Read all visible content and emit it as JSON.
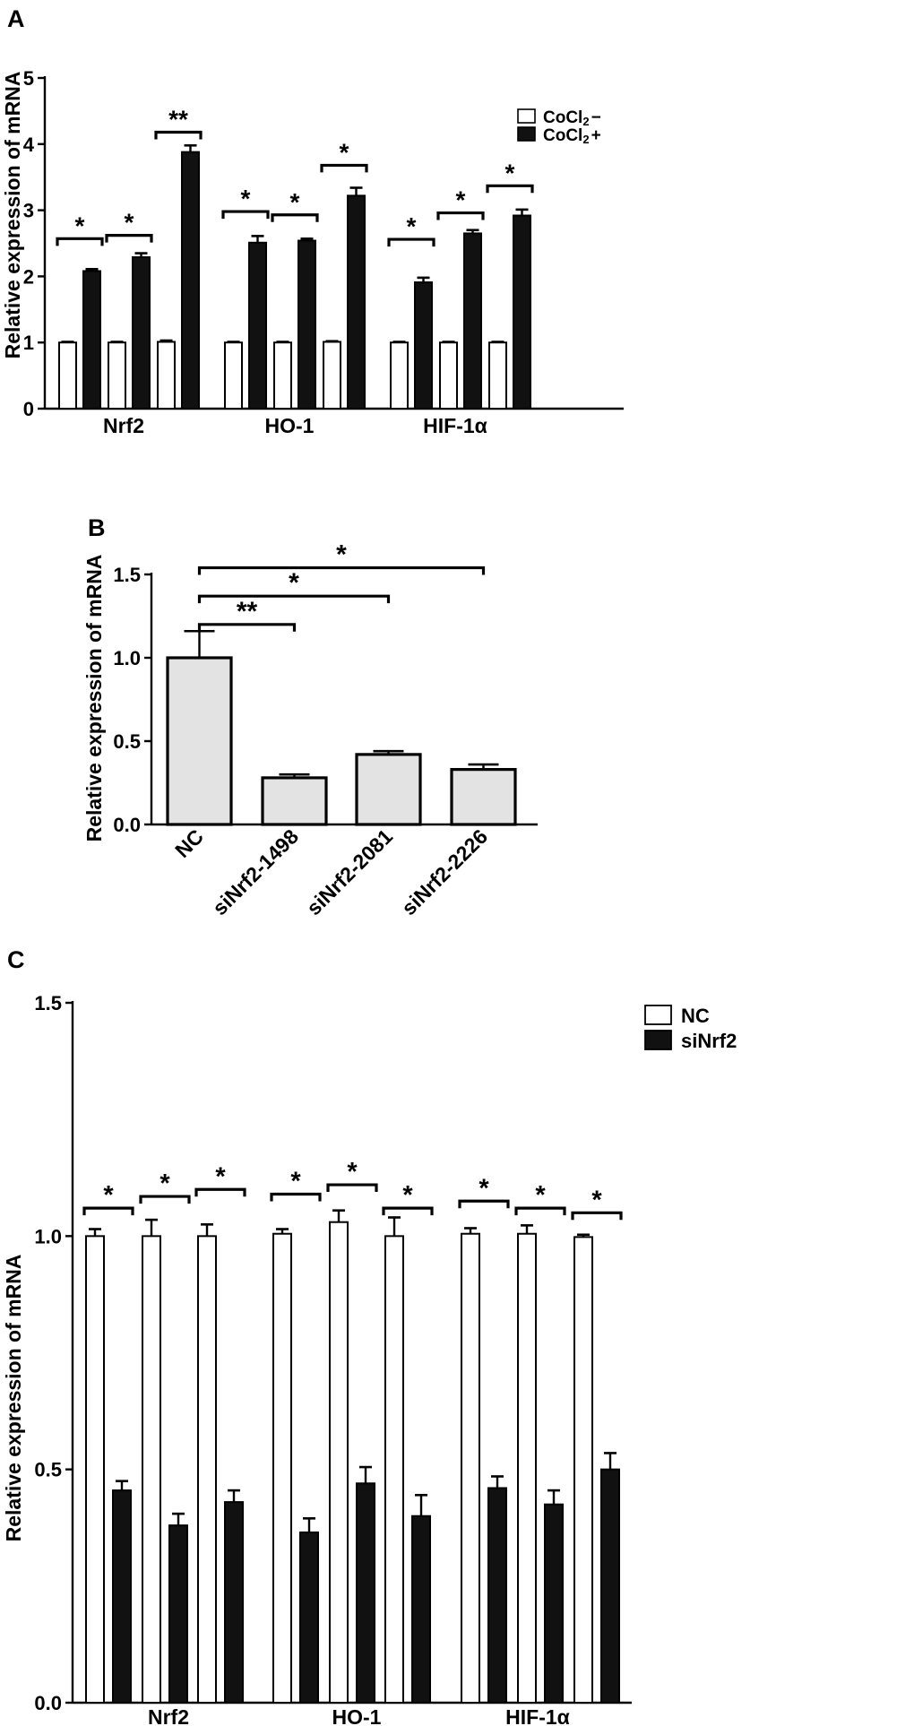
{
  "panels": {
    "A": "A",
    "B": "B",
    "C": "C"
  },
  "chart_data": [
    {
      "type": "bar",
      "panel": "A",
      "title": "",
      "ylabel": "Relative expression of mRNA",
      "xlabel": "",
      "ylim": [
        0,
        5
      ],
      "yticks": [
        "0",
        "1",
        "2",
        "3",
        "4",
        "5"
      ],
      "groups": [
        "Nrf2",
        "HO-1",
        "HIF-1α"
      ],
      "pairs_per_group": 3,
      "legend": {
        "position": "top-right"
      },
      "series": [
        {
          "name": "CoCl2−",
          "legend_main": "CoCl",
          "legend_sub": "2",
          "legend_suffix": "−",
          "fill": "#ffffff",
          "values": [
            1.0,
            1.0,
            1.01,
            1.0,
            1.0,
            1.01,
            1.0,
            1.0,
            1.0
          ],
          "errors": [
            0.01,
            0.01,
            0.02,
            0.01,
            0.01,
            0.01,
            0.01,
            0.01,
            0.01
          ]
        },
        {
          "name": "CoCl2+",
          "legend_main": "CoCl",
          "legend_sub": "2",
          "legend_suffix": "+",
          "fill": "#111111",
          "values": [
            2.08,
            2.29,
            3.88,
            2.51,
            2.54,
            3.22,
            1.91,
            2.65,
            2.92
          ],
          "errors": [
            0.03,
            0.06,
            0.1,
            0.1,
            0.03,
            0.12,
            0.07,
            0.05,
            0.09
          ]
        }
      ],
      "significance": [
        "*",
        "*",
        "**",
        "*",
        "*",
        "*",
        "*",
        "*",
        "*"
      ],
      "bracket_y": [
        2.57,
        2.62,
        4.18,
        2.98,
        2.93,
        3.68,
        2.56,
        2.96,
        3.37
      ]
    },
    {
      "type": "bar",
      "panel": "B",
      "title": "",
      "ylabel": "Relative expression of mRNA",
      "xlabel": "",
      "ylim": [
        0,
        1.5
      ],
      "yticks": [
        "0.0",
        "0.5",
        "1.0",
        "1.5"
      ],
      "categories": [
        "NC",
        "siNrf2-1498",
        "siNrf2-2081",
        "siNrf2-2226"
      ],
      "values": [
        1.0,
        0.28,
        0.42,
        0.33
      ],
      "errors": [
        0.16,
        0.02,
        0.02,
        0.03
      ],
      "fill": "#e3e3e3",
      "significance": [
        {
          "from": "NC",
          "to": "siNrf2-1498",
          "label": "**",
          "y": 1.2
        },
        {
          "from": "NC",
          "to": "siNrf2-2081",
          "label": "*",
          "y": 1.37
        },
        {
          "from": "NC",
          "to": "siNrf2-2226",
          "label": "*",
          "y": 1.54
        }
      ]
    },
    {
      "type": "bar",
      "panel": "C",
      "title": "",
      "ylabel": "Relative expression of mRNA",
      "xlabel": "",
      "ylim": [
        0,
        1.5
      ],
      "yticks": [
        "0.0",
        "0.5",
        "1.0",
        "1.5"
      ],
      "groups": [
        "Nrf2",
        "HO-1",
        "HIF-1α"
      ],
      "pairs_per_group": 3,
      "legend": {
        "position": "top-right"
      },
      "series": [
        {
          "name": "NC",
          "fill": "#ffffff",
          "values": [
            1.0,
            1.0,
            1.0,
            1.005,
            1.03,
            1.0,
            1.005,
            1.005,
            0.998
          ],
          "errors": [
            0.015,
            0.035,
            0.025,
            0.01,
            0.025,
            0.04,
            0.012,
            0.018,
            0.005
          ]
        },
        {
          "name": "siNrf2",
          "fill": "#111111",
          "values": [
            0.455,
            0.38,
            0.43,
            0.365,
            0.47,
            0.4,
            0.46,
            0.425,
            0.5
          ],
          "errors": [
            0.02,
            0.025,
            0.025,
            0.03,
            0.035,
            0.045,
            0.025,
            0.03,
            0.035
          ]
        }
      ],
      "significance": [
        "*",
        "*",
        "*",
        "*",
        "*",
        "*",
        "*",
        "*",
        "*"
      ],
      "bracket_y": [
        1.06,
        1.085,
        1.1,
        1.09,
        1.11,
        1.06,
        1.075,
        1.06,
        1.05
      ]
    }
  ]
}
